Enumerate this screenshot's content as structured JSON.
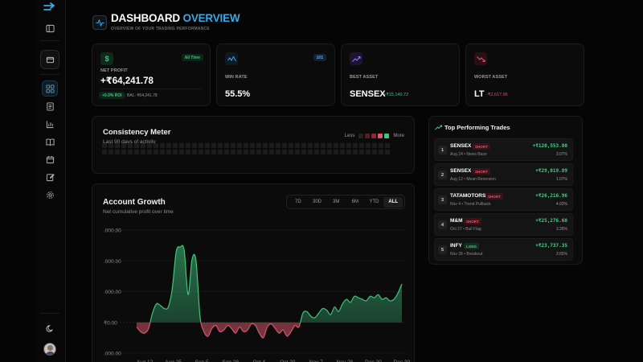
{
  "header": {
    "title_main": "DASHBOARD",
    "title_accent": "OVERVIEW",
    "subtitle": "OVERVIEW OF YOUR TRADING PERFORMANCE"
  },
  "stats": {
    "net_profit": {
      "icon_glyph": "$",
      "label": "NET PROFIT",
      "badge": "All Time",
      "value": "+₹64,241.78",
      "roi": "+0.0% ROI",
      "balance": "BAL: ₹64,241.78"
    },
    "win_rate": {
      "label": "WIN RATE",
      "badge": "101",
      "value": "55.5%"
    },
    "best_asset": {
      "label": "BEST ASSET",
      "value": "SENSEX",
      "change": "+₹15,140.72"
    },
    "worst_asset": {
      "label": "WORST ASSET",
      "value": "LT",
      "change": "-₹2,617.95"
    }
  },
  "consistency": {
    "title": "Consistency Meter",
    "subtitle": "Last 90 days of activity",
    "legend_less": "Less",
    "legend_more": "More"
  },
  "growth": {
    "title": "Account Growth",
    "subtitle": "Net cumulative profit over time",
    "ranges": [
      "7D",
      "30D",
      "3M",
      "6M",
      "YTD",
      "ALL"
    ],
    "active_range": "ALL"
  },
  "top_trades": {
    "title": "Top Performing Trades",
    "items": [
      {
        "rank": "1",
        "symbol": "SENSEX",
        "side": "SHORT",
        "meta": "Aug 24 • News Base",
        "pnl": "+₹120,553.00",
        "pct": "3.07%"
      },
      {
        "rank": "2",
        "symbol": "SENSEX",
        "side": "SHORT",
        "meta": "Aug 12 • Mean Reversion",
        "pnl": "+₹29,019.89",
        "pct": "1.07%"
      },
      {
        "rank": "3",
        "symbol": "TATAMOTORS",
        "side": "SHORT",
        "meta": "Nov 4 • Trend Pullback",
        "pnl": "+₹26,216.96",
        "pct": "4.02%"
      },
      {
        "rank": "4",
        "symbol": "M&M",
        "side": "SHORT",
        "meta": "Oct 27 • Bull Flag",
        "pnl": "+₹25,276.60",
        "pct": "3.26%"
      },
      {
        "rank": "5",
        "symbol": "INFY",
        "side": "LONG",
        "meta": "Nov 28 • Breakout",
        "pnl": "+₹23,737.35",
        "pct": "3.65%"
      }
    ]
  },
  "colors": {
    "accent": "#3ea7e0",
    "profit": "#3fc57e",
    "loss": "#d4576b",
    "card_bg": "#0b0b0b"
  },
  "chart_data": {
    "type": "area",
    "title": "Account Growth",
    "y_tick_labels": [
      ".000.00",
      ".000.00",
      ".000.00",
      "₹0.00",
      ".000.00"
    ],
    "x_tick_labels": [
      "Aug 12",
      "Aug 25",
      "Sep 5",
      "Sep 28",
      "Oct 4",
      "Oct 20",
      "Nov 7",
      "Nov 28",
      "Dec 20",
      "Dec 30"
    ],
    "y_index_range": [
      -1,
      3
    ],
    "series": [
      {
        "values": [
          -0.15,
          -0.3,
          -0.35,
          -0.2,
          0.3,
          0.6,
          0.55,
          0.45,
          0.5,
          1.1,
          2.3,
          2.45,
          2.35,
          0.9,
          2.05,
          2.0,
          0.2,
          -0.3,
          -0.45,
          -0.2,
          -0.1,
          -0.3,
          -0.25,
          -0.1,
          -0.2,
          -0.35,
          -0.15,
          -0.3,
          -0.25,
          -0.05,
          -0.1,
          -0.35,
          -0.5,
          -0.15,
          -0.05,
          -0.2,
          -0.35,
          -0.25,
          -0.45,
          -0.3,
          -0.1,
          -0.15,
          0.3,
          0.35,
          0.2,
          0.15,
          0.3,
          0.45,
          0.4,
          0.25,
          0.5,
          0.35,
          0.6,
          0.75,
          0.65,
          0.85,
          0.8,
          0.75,
          0.7,
          0.85,
          0.8,
          0.9,
          0.75,
          0.8,
          0.7,
          0.75,
          0.95,
          1.25
        ]
      }
    ],
    "grid": true,
    "legend": "none"
  }
}
